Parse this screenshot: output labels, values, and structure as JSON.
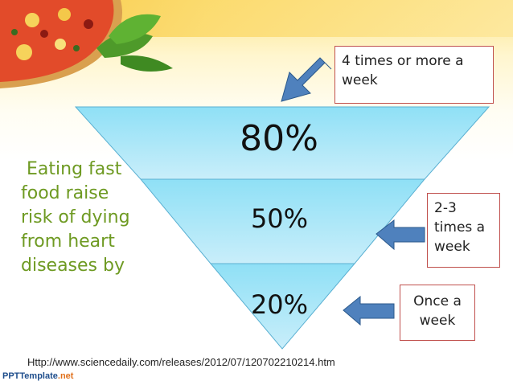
{
  "funnel": {
    "levels": [
      {
        "label": "80%"
      },
      {
        "label": "50%"
      },
      {
        "label": "20%"
      }
    ],
    "colors": {
      "top": "#8fe0f6",
      "bottom": "#cdeffa",
      "edge": "#5ab0d2"
    }
  },
  "side_text": {
    "lines": [
      "Eating fast",
      "food raise",
      "risk of dying",
      "from heart",
      "diseases by"
    ],
    "color": "#6e9a22"
  },
  "callouts": [
    {
      "lines": [
        "4 times or more a",
        "week"
      ]
    },
    {
      "lines": [
        "2-3",
        "times a",
        "week"
      ]
    },
    {
      "lines": [
        "Once a",
        "week"
      ]
    }
  ],
  "arrow_color": "#4f81bd",
  "source": "Http://www.sciencedaily.com/releases/2012/07/120702210214.htm",
  "brand": {
    "part1": "PPT",
    "part2": "Template",
    "part3": ".net"
  }
}
